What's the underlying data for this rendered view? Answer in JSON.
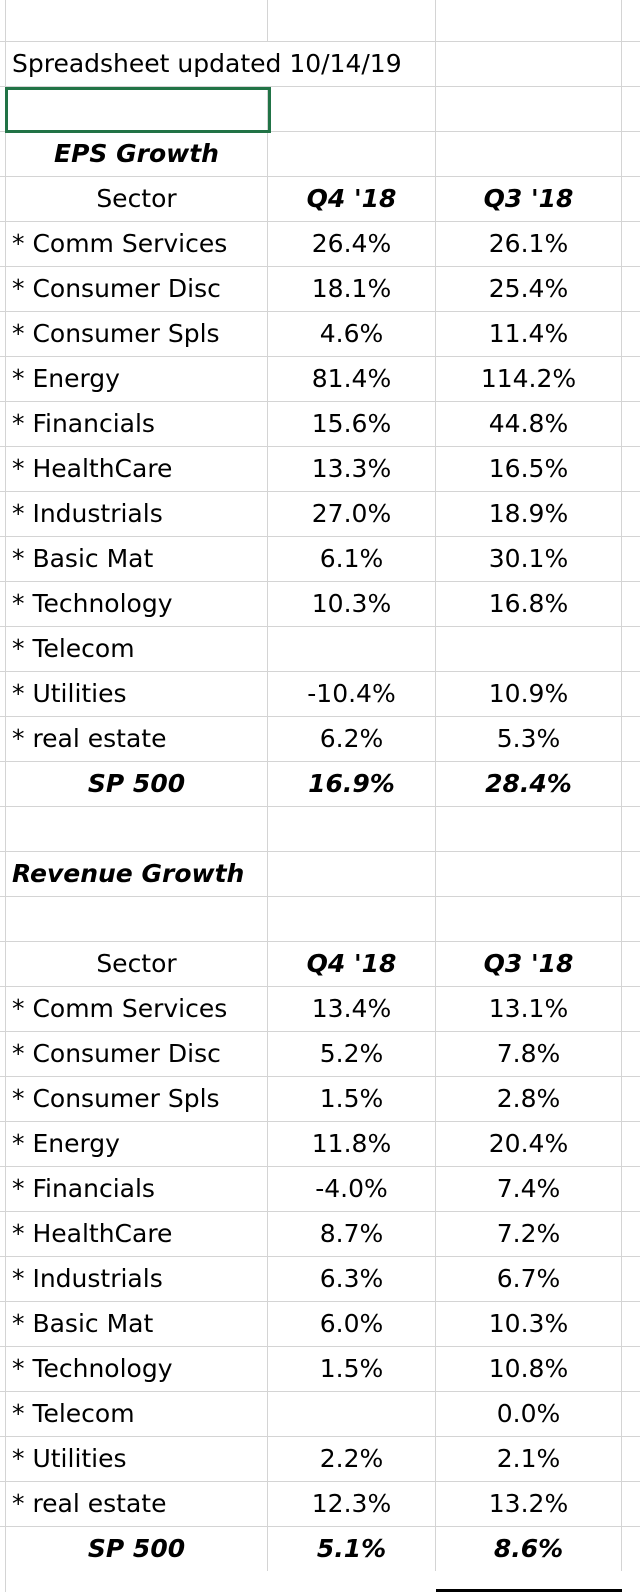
{
  "title": "Spreadsheet updated 10/14/19",
  "eps": {
    "heading": "EPS Growth",
    "header": {
      "sector": "Sector",
      "q4": "Q4 '18",
      "q3": "Q3 '18"
    },
    "rows": [
      {
        "sector": " * Comm Services",
        "q4": "26.4%",
        "q3": "26.1%"
      },
      {
        "sector": "* Consumer Disc",
        "q4": "18.1%",
        "q3": "25.4%"
      },
      {
        "sector": "* Consumer Spls",
        "q4": "4.6%",
        "q3": "11.4%"
      },
      {
        "sector": "* Energy",
        "q4": "81.4%",
        "q3": "114.2%"
      },
      {
        "sector": "* Financials",
        "q4": "15.6%",
        "q3": "44.8%"
      },
      {
        "sector": "* HealthCare",
        "q4": "13.3%",
        "q3": "16.5%"
      },
      {
        "sector": "* Industrials",
        "q4": "27.0%",
        "q3": "18.9%"
      },
      {
        "sector": "* Basic Mat",
        "q4": "6.1%",
        "q3": "30.1%"
      },
      {
        "sector": "* Technology",
        "q4": "10.3%",
        "q3": "16.8%"
      },
      {
        "sector": "* Telecom",
        "q4": "",
        "q3": ""
      },
      {
        "sector": "* Utilities",
        "q4": "-10.4%",
        "q3": "10.9%"
      },
      {
        "sector": "* real estate",
        "q4": "6.2%",
        "q3": "5.3%"
      }
    ],
    "total": {
      "sector": "SP 500",
      "q4": "16.9%",
      "q3": "28.4%"
    }
  },
  "revenue": {
    "heading": "Revenue Growth",
    "header": {
      "sector": "Sector",
      "q4": "Q4 '18",
      "q3": "Q3 '18"
    },
    "rows": [
      {
        "sector": " * Comm Services",
        "q4": "13.4%",
        "q3": "13.1%"
      },
      {
        "sector": "* Consumer Disc",
        "q4": "5.2%",
        "q3": "7.8%"
      },
      {
        "sector": "* Consumer Spls",
        "q4": "1.5%",
        "q3": "2.8%"
      },
      {
        "sector": "* Energy",
        "q4": "11.8%",
        "q3": "20.4%"
      },
      {
        "sector": "* Financials",
        "q4": "-4.0%",
        "q3": "7.4%"
      },
      {
        "sector": "* HealthCare",
        "q4": "8.7%",
        "q3": "7.2%"
      },
      {
        "sector": "* Industrials",
        "q4": "6.3%",
        "q3": "6.7%"
      },
      {
        "sector": "* Basic Mat",
        "q4": "6.0%",
        "q3": "10.3%"
      },
      {
        "sector": "* Technology",
        "q4": "1.5%",
        "q3": "10.8%"
      },
      {
        "sector": "* Telecom",
        "q4": "",
        "q3": "0.0%"
      },
      {
        "sector": "* Utilities",
        "q4": "2.2%",
        "q3": "2.1%"
      },
      {
        "sector": "* real estate",
        "q4": "12.3%",
        "q3": "13.2%"
      }
    ],
    "total": {
      "sector": "SP 500",
      "q4": "5.1%",
      "q3": "8.6%"
    }
  }
}
